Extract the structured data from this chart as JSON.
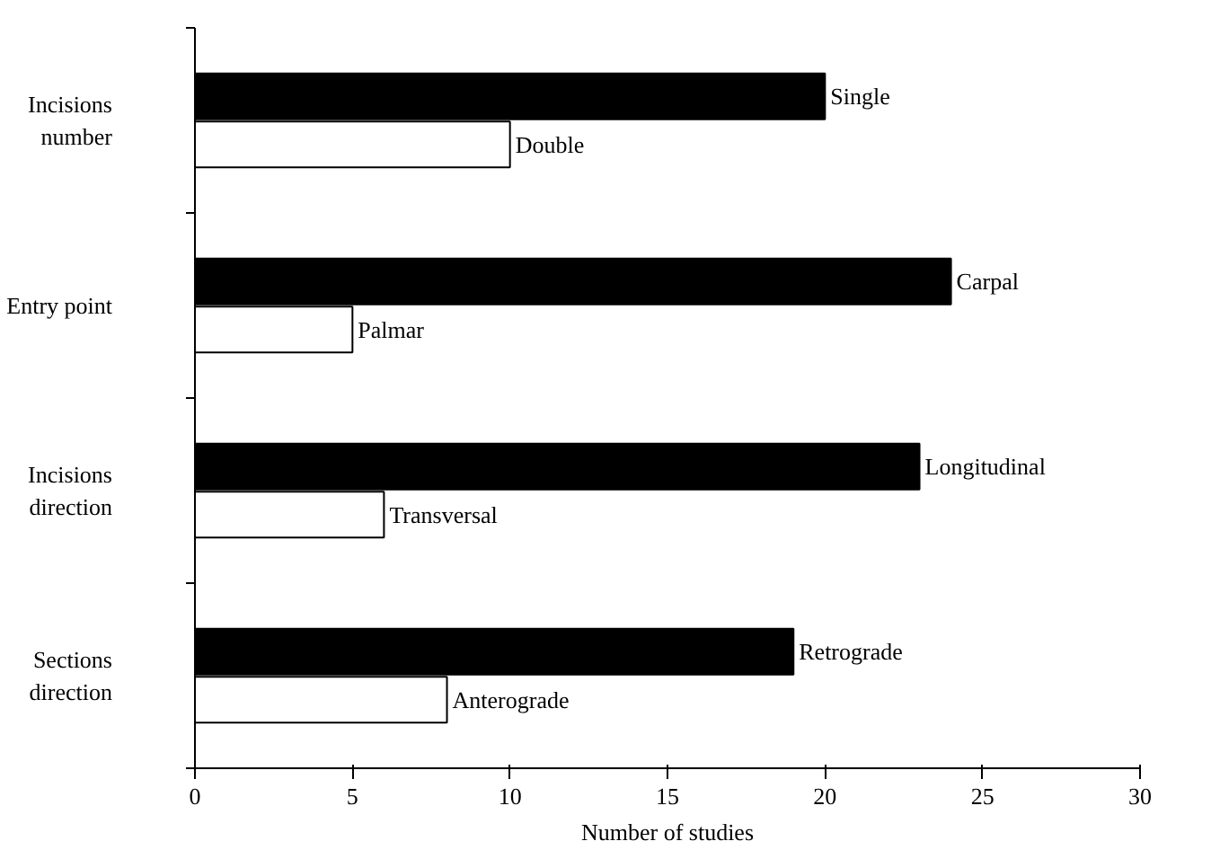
{
  "chart_data": {
    "type": "bar",
    "orientation": "horizontal",
    "categories": [
      "Incisions\nnumber",
      "Entry point",
      "Incisions\ndirection",
      "Sections\ndirection"
    ],
    "series": [
      {
        "color": "#000000",
        "values": [
          20,
          24,
          23,
          19
        ],
        "value_labels": [
          "Single",
          "Carpal",
          "Longitudinal",
          "Retrograde"
        ]
      },
      {
        "color": "#ffffff",
        "values": [
          10,
          5,
          6,
          8
        ],
        "value_labels": [
          "Double",
          "Palmar",
          "Transversal",
          "Anterograde"
        ]
      }
    ],
    "xlabel": "Number of studies",
    "xlim": [
      0,
      30
    ],
    "xticks": [
      0,
      5,
      10,
      15,
      20,
      25,
      30
    ],
    "grid": false
  }
}
